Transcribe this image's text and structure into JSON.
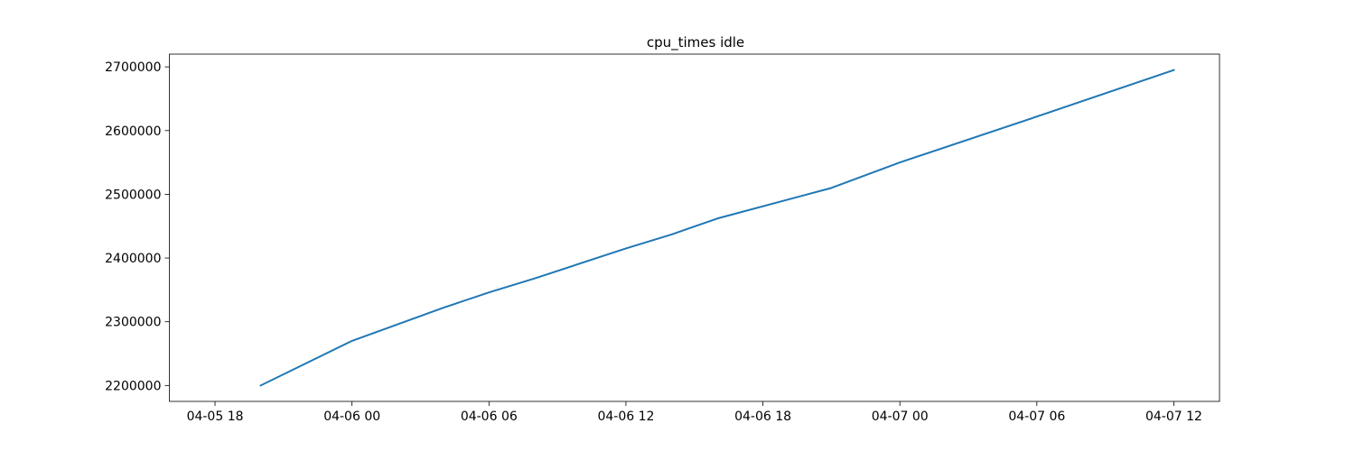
{
  "chart_data": {
    "type": "line",
    "title": "cpu_times idle",
    "xlabel": "",
    "ylabel": "",
    "x_axis_type": "datetime",
    "x_ticks": [
      {
        "value": "2024-04-05T18:00",
        "label": "04-05 18"
      },
      {
        "value": "2024-04-06T00:00",
        "label": "04-06 00"
      },
      {
        "value": "2024-04-06T06:00",
        "label": "04-06 06"
      },
      {
        "value": "2024-04-06T12:00",
        "label": "04-06 12"
      },
      {
        "value": "2024-04-06T18:00",
        "label": "04-06 18"
      },
      {
        "value": "2024-04-07T00:00",
        "label": "04-07 00"
      },
      {
        "value": "2024-04-07T06:00",
        "label": "04-07 06"
      },
      {
        "value": "2024-04-07T12:00",
        "label": "04-07 12"
      }
    ],
    "y_ticks": [
      2200000,
      2300000,
      2400000,
      2500000,
      2600000,
      2700000
    ],
    "xlim": [
      "2024-04-05T16:00",
      "2024-04-07T14:00"
    ],
    "ylim": [
      2175000,
      2720000
    ],
    "grid": false,
    "legend": "none",
    "series": [
      {
        "color": "#1f77b4",
        "x": [
          "2024-04-05T20:00",
          "2024-04-06T00:00",
          "2024-04-06T04:00",
          "2024-04-06T06:00",
          "2024-04-06T08:00",
          "2024-04-06T12:00",
          "2024-04-06T14:00",
          "2024-04-06T16:00",
          "2024-04-06T21:00",
          "2024-04-07T00:00",
          "2024-04-07T06:00",
          "2024-04-07T12:00"
        ],
        "y": [
          2200000,
          2270000,
          2322000,
          2346000,
          2368000,
          2415000,
          2437000,
          2462000,
          2510000,
          2550000,
          2622000,
          2695000
        ]
      }
    ]
  }
}
